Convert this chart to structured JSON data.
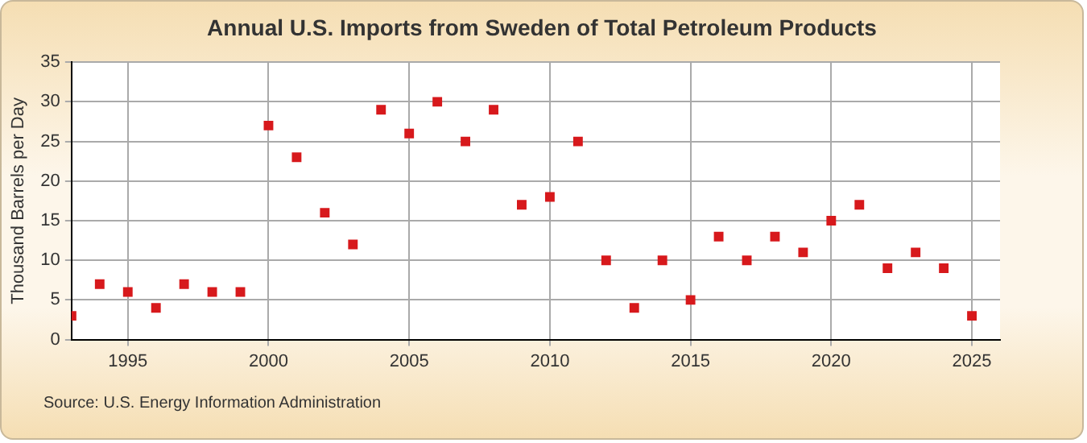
{
  "chart_data": {
    "type": "scatter",
    "title": "Annual U.S. Imports from Sweden of Total Petroleum Products",
    "ylabel": "Thousand Barrels per Day",
    "annotations": [
      "Source: U.S. Energy Information Administration"
    ],
    "x": [
      1993,
      1994,
      1995,
      1996,
      1997,
      1998,
      1999,
      2000,
      2001,
      2002,
      2003,
      2004,
      2005,
      2006,
      2007,
      2008,
      2009,
      2010,
      2011,
      2012,
      2013,
      2014,
      2015,
      2016,
      2017,
      2018,
      2019,
      2020,
      2021,
      2022,
      2023,
      2024,
      2025
    ],
    "series": [
      {
        "color": "#d7191c",
        "values": [
          3,
          7,
          6,
          4,
          7,
          6,
          6,
          27,
          23,
          16,
          12,
          29,
          26,
          30,
          25,
          29,
          17,
          18,
          25,
          10,
          4,
          10,
          5,
          13,
          10,
          13,
          11,
          15,
          17,
          9,
          11,
          9,
          3
        ]
      }
    ],
    "xlim": [
      1993,
      2026
    ],
    "xticks": [
      1995,
      2000,
      2005,
      2010,
      2015,
      2020,
      2025
    ],
    "ylim": [
      0,
      35
    ],
    "yticks": [
      0,
      5,
      10,
      15,
      20,
      25,
      30,
      35
    ],
    "grid": true,
    "marker": "square",
    "legend": false
  }
}
